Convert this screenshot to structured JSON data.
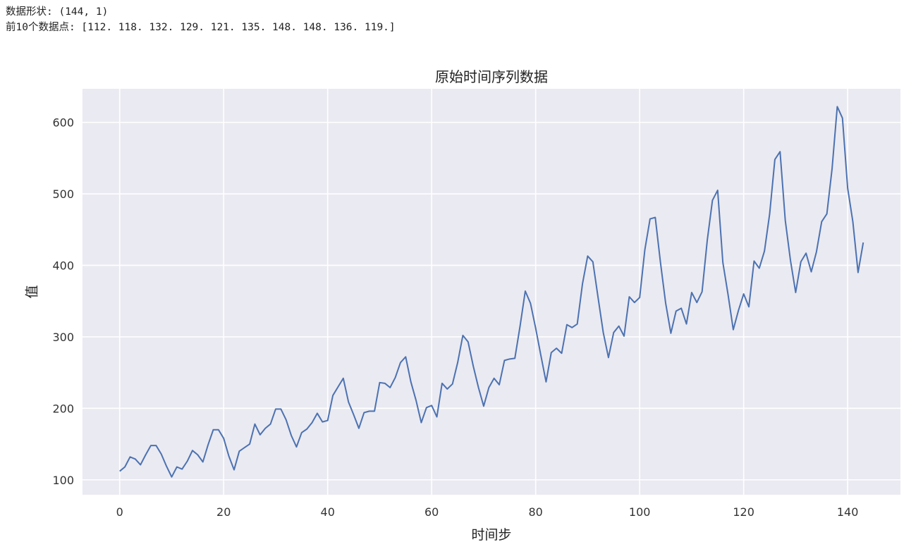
{
  "console": {
    "line1": "数据形状: (144, 1)",
    "line2": "前10个数据点: [112. 118. 132. 129. 121. 135. 148. 148. 136. 119.]"
  },
  "chart_data": {
    "type": "line",
    "title": "原始时间序列数据",
    "xlabel": "时间步",
    "ylabel": "值",
    "xlim": [
      -7.15,
      150.15
    ],
    "ylim": [
      79.05,
      646.95
    ],
    "xticks": [
      0,
      20,
      40,
      60,
      80,
      100,
      120,
      140
    ],
    "yticks": [
      100,
      200,
      300,
      400,
      500,
      600
    ],
    "grid": true,
    "line_color": "#4c72b0",
    "background": "#eaeaf2",
    "series": [
      {
        "values": [
          112,
          118,
          132,
          129,
          121,
          135,
          148,
          148,
          136,
          119,
          104,
          118,
          115,
          126,
          141,
          135,
          125,
          149,
          170,
          170,
          158,
          133,
          114,
          140,
          145,
          150,
          178,
          163,
          172,
          178,
          199,
          199,
          184,
          162,
          146,
          166,
          171,
          180,
          193,
          181,
          183,
          218,
          230,
          242,
          209,
          191,
          172,
          194,
          196,
          196,
          236,
          235,
          229,
          243,
          264,
          272,
          237,
          211,
          180,
          201,
          204,
          188,
          235,
          227,
          234,
          264,
          302,
          293,
          259,
          229,
          203,
          229,
          242,
          233,
          267,
          269,
          270,
          315,
          364,
          347,
          312,
          274,
          237,
          278,
          284,
          277,
          317,
          313,
          318,
          374,
          413,
          405,
          355,
          306,
          271,
          306,
          315,
          301,
          356,
          348,
          355,
          422,
          465,
          467,
          404,
          347,
          305,
          336,
          340,
          318,
          362,
          348,
          363,
          435,
          491,
          505,
          404,
          359,
          310,
          337,
          360,
          342,
          406,
          396,
          420,
          472,
          548,
          559,
          463,
          407,
          362,
          405,
          417,
          391,
          419,
          461,
          472,
          535,
          622,
          606,
          508,
          461,
          390,
          432
        ]
      }
    ]
  }
}
